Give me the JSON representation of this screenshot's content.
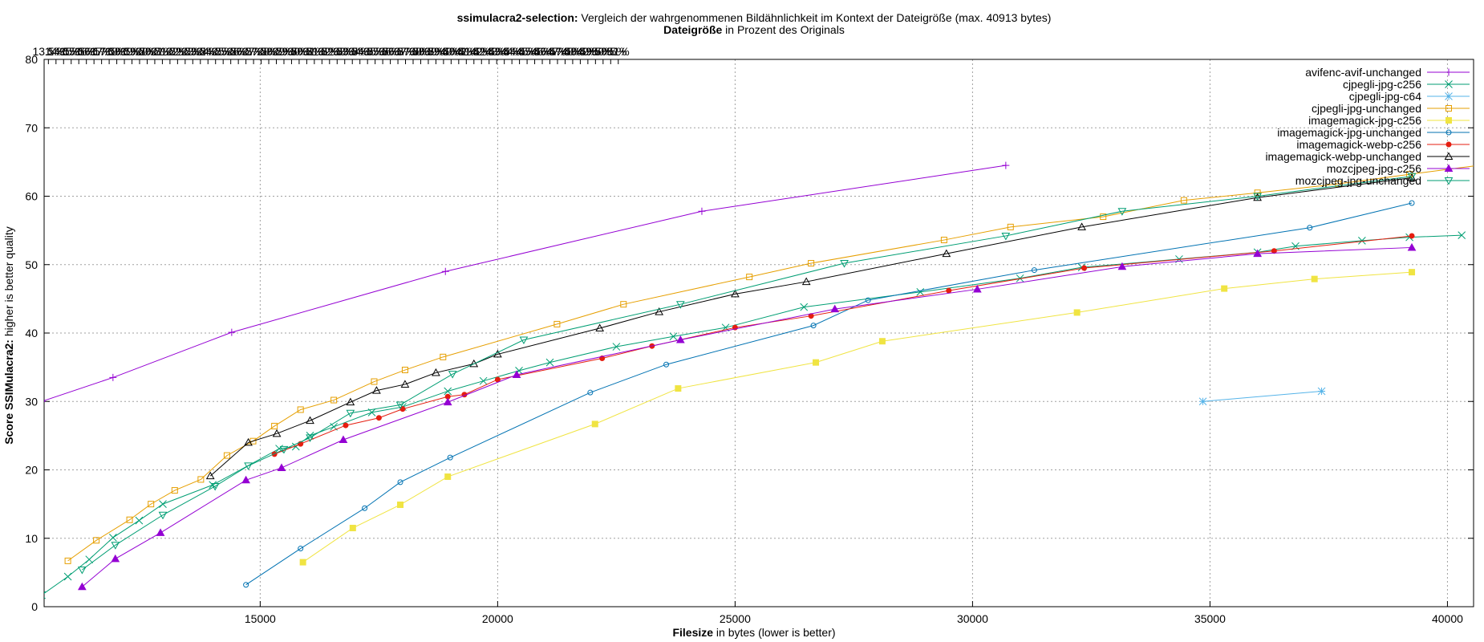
{
  "chart_data": {
    "type": "line",
    "title_bold": "ssimulacra2-selection:",
    "title_rest": " Vergleich der wahrgenommenen Bildähnlichkeit im Kontext der Dateigröße (max. 40913 bytes)",
    "subtitle_bold": "Dateigröße",
    "subtitle_rest": " in Prozent des Originals",
    "xlabel_bold": "Filesize",
    "xlabel_rest": " in bytes (lower is better)",
    "ylabel_bold": "Score SSIMulacra2:",
    "ylabel_rest": " higher is better quality",
    "xlim": [
      10450,
      40550
    ],
    "ylim": [
      0,
      80
    ],
    "x_ticks": [
      15000,
      20000,
      25000,
      30000,
      35000,
      40000
    ],
    "y_ticks": [
      0,
      10,
      20,
      30,
      40,
      50,
      60,
      70,
      80
    ],
    "grid": true,
    "legend_position": "top-right",
    "x2_tick_labels": [
      "13.5%",
      "14%",
      "14.5%",
      "15%",
      "15.5%",
      "16%",
      "16.5%",
      "17%",
      "17.5%",
      "18%",
      "18.5%",
      "19%",
      "19.5%",
      "20%",
      "20.5%",
      "21%",
      "21.5%",
      "22%",
      "22.5%",
      "23%",
      "23.5%",
      "24%",
      "24.5%",
      "25%",
      "25.5%",
      "26%",
      "26.5%",
      "27%",
      "27.5%",
      "28%",
      "28.5%",
      "29%",
      "29.5%",
      "30%",
      "30.5%",
      "31%",
      "31.5%",
      "32%",
      "32.5%",
      "33%",
      "33.5%",
      "34%",
      "34.5%",
      "35%",
      "35.5%",
      "36%",
      "36.5%",
      "37%",
      "37.5%",
      "38%",
      "38.5%",
      "39%",
      "39.5%",
      "40%",
      "40.5%",
      "41%",
      "41.5%",
      "42%",
      "42.5%",
      "43%",
      "43.5%",
      "44%",
      "44.5%",
      "45%",
      "45.5%",
      "46%",
      "46.5%",
      "47%",
      "47.5%",
      "48%",
      "48.5%",
      "49%",
      "49.5%",
      "50%",
      "50.5%",
      "51%"
    ],
    "x2_tick_positions": [
      10540,
      10700,
      10860,
      11020,
      11180,
      11340,
      11500,
      11660,
      11820,
      11980,
      12140,
      12300,
      12460,
      12620,
      12780,
      12940,
      13100,
      13260,
      13420,
      13580,
      13740,
      13900,
      14060,
      14220,
      14380,
      14540,
      14700,
      14860,
      15020,
      15180,
      15340,
      15500,
      15660,
      15820,
      15980,
      16140,
      16300,
      16460,
      16620,
      16780,
      16940,
      17100,
      17260,
      17420,
      17580,
      17740,
      17900,
      18060,
      18220,
      18380,
      18540,
      18700,
      18860,
      19020,
      19180,
      19340,
      19500,
      19660,
      19820,
      19980,
      20140,
      20300,
      20460,
      20620,
      20780,
      20940,
      21100,
      21260,
      21420,
      21580,
      21740,
      21900,
      22060,
      22220,
      22380,
      22540
    ],
    "x2_tick_label_suffix": "%",
    "series": [
      {
        "name": "avifenc-avif-unchanged",
        "color": "#9400d3",
        "marker": "plus",
        "x": [
          10400,
          11900,
          14400,
          18900,
          24300,
          30700
        ],
        "y": [
          30.0,
          33.5,
          40.1,
          49.0,
          57.8,
          64.5
        ]
      },
      {
        "name": "cjpegli-jpg-c256",
        "color": "#009e73",
        "marker": "cross",
        "x": [
          10400,
          10950,
          11400,
          11900,
          12450,
          12950,
          14000,
          15400,
          15750,
          16050,
          16550,
          17350,
          18000,
          18950,
          19700,
          20450,
          21100,
          22500,
          23700,
          24800,
          26450,
          28900,
          31000,
          32300,
          34350,
          36000,
          36800,
          38200,
          39200,
          40300
        ],
        "y": [
          1.7,
          4.4,
          6.9,
          10.1,
          12.6,
          15.0,
          17.8,
          23.1,
          23.4,
          25.0,
          26.3,
          28.4,
          29.2,
          31.5,
          33.0,
          34.5,
          35.7,
          38.0,
          39.5,
          40.8,
          43.8,
          46.0,
          48.0,
          49.6,
          50.8,
          51.8,
          52.7,
          53.5,
          54.0,
          54.3
        ]
      },
      {
        "name": "cjpegli-jpg-c64",
        "color": "#56b4e9",
        "marker": "star",
        "x": [
          34850,
          37350
        ],
        "y": [
          30.0,
          31.5
        ]
      },
      {
        "name": "cjpegli-jpg-unchanged",
        "color": "#e69f00",
        "marker": "square",
        "x": [
          10950,
          11550,
          12250,
          12700,
          13200,
          13750,
          14300,
          14850,
          15300,
          15850,
          16550,
          17400,
          18050,
          18850,
          21250,
          22650,
          25300,
          26600,
          29400,
          30800,
          32750,
          34450,
          36000,
          37700,
          39200,
          40650
        ],
        "y": [
          6.7,
          9.7,
          12.7,
          15.0,
          17.0,
          18.6,
          22.1,
          24.2,
          26.4,
          28.8,
          30.2,
          32.9,
          34.6,
          36.5,
          41.3,
          44.2,
          48.2,
          50.2,
          53.6,
          55.5,
          57.0,
          59.4,
          60.5,
          61.8,
          63.2,
          64.5
        ]
      },
      {
        "name": "imagemagick-jpg-c256",
        "color": "#f0e442",
        "marker": "filled-square",
        "x": [
          15900,
          16950,
          17950,
          18950,
          22050,
          23800,
          26700,
          28100,
          32200,
          35300,
          37200,
          39250
        ],
        "y": [
          6.5,
          11.5,
          14.9,
          19.0,
          26.7,
          31.9,
          35.7,
          38.8,
          43.0,
          46.5,
          47.9,
          48.9
        ]
      },
      {
        "name": "imagemagick-jpg-unchanged",
        "color": "#0072b2",
        "marker": "circle",
        "x": [
          14700,
          15850,
          17200,
          17950,
          19000,
          21950,
          23550,
          26650,
          27800,
          31300,
          37100,
          39250
        ],
        "y": [
          3.2,
          8.5,
          14.4,
          18.2,
          21.8,
          31.3,
          35.4,
          41.1,
          44.8,
          49.2,
          55.4,
          59.0
        ]
      },
      {
        "name": "imagemagick-webp-c256",
        "color": "#e51e10",
        "marker": "filled-circle",
        "x": [
          15300,
          15850,
          16800,
          17500,
          18000,
          18950,
          19300,
          20000,
          22200,
          23250,
          25000,
          26600,
          29500,
          32350,
          36350,
          39250
        ],
        "y": [
          22.3,
          23.8,
          26.5,
          27.6,
          28.9,
          30.7,
          31.0,
          33.2,
          36.3,
          38.1,
          40.8,
          42.5,
          46.2,
          49.5,
          52.0,
          54.2
        ]
      },
      {
        "name": "imagemagick-webp-unchanged",
        "color": "#000000",
        "marker": "triangle",
        "x": [
          13950,
          14750,
          15350,
          16050,
          16900,
          17450,
          18050,
          18700,
          19500,
          20000,
          22150,
          23400,
          25000,
          26500,
          29450,
          32300,
          36000,
          39250
        ],
        "y": [
          19.1,
          24.0,
          25.3,
          27.2,
          29.9,
          31.6,
          32.5,
          34.2,
          35.5,
          36.9,
          40.7,
          43.1,
          45.7,
          47.5,
          51.6,
          55.5,
          59.8,
          62.7
        ]
      },
      {
        "name": "mozcjpeg-jpg-c256",
        "color": "#9400d3",
        "marker": "filled-triangle",
        "x": [
          11250,
          11950,
          12900,
          14700,
          15450,
          16750,
          18950,
          20400,
          23850,
          27100,
          30100,
          33150,
          36000,
          39250
        ],
        "y": [
          2.9,
          7.0,
          10.8,
          18.5,
          20.3,
          24.4,
          29.9,
          33.9,
          39.0,
          43.5,
          46.4,
          49.7,
          51.6,
          52.5
        ]
      },
      {
        "name": "mozcjpeg-jpg-unchanged",
        "color": "#009e73",
        "marker": "triangle-down",
        "x": [
          11250,
          11950,
          12950,
          14050,
          14750,
          15500,
          16050,
          16900,
          17950,
          19050,
          20550,
          23850,
          27300,
          30700,
          33150,
          36000,
          39250
        ],
        "y": [
          5.4,
          9.0,
          13.4,
          17.6,
          20.6,
          23.0,
          24.7,
          28.3,
          29.5,
          34.0,
          39.0,
          44.2,
          50.2,
          54.2,
          57.8,
          60.0,
          62.9
        ]
      }
    ]
  }
}
